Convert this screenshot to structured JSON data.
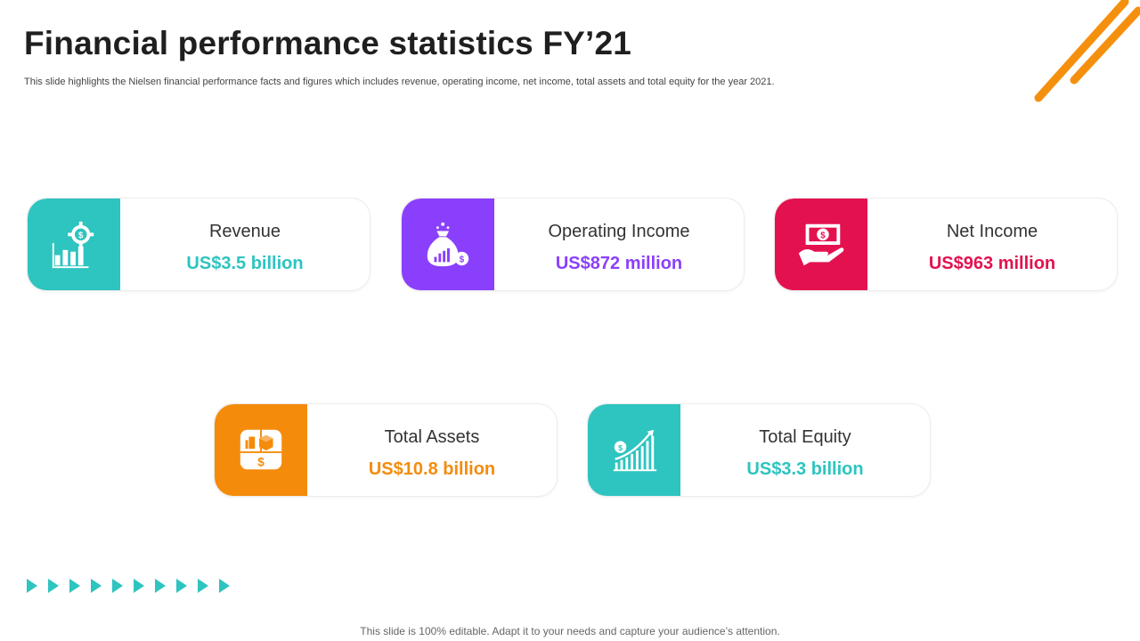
{
  "slide": {
    "title": "Financial performance statistics FY’21",
    "subtitle": "This slide highlights the Nielsen financial performance facts and figures which includes revenue, operating income, net income, total assets and total equity for the year 2021.",
    "footer": "This slide is 100% editable. Adapt it to your needs and capture your audience’s attention."
  },
  "colors": {
    "teal": "#2ec4c0",
    "purple": "#8a3ffc",
    "crimson": "#e3124f",
    "orange": "#f58b0a",
    "deco_orange": "#f5900f"
  },
  "cards": [
    {
      "label": "Revenue",
      "value": "US$3.5 billion",
      "icon": "revenue-chart-gear-icon",
      "color": "#2ec4c0"
    },
    {
      "label": "Operating Income",
      "value": "US$872 million",
      "icon": "money-bag-icon",
      "color": "#8a3ffc"
    },
    {
      "label": "Net Income",
      "value": "US$963 million",
      "icon": "hand-banknote-icon",
      "color": "#e3124f"
    },
    {
      "label": "Total Assets",
      "value": "US$10.8 billion",
      "icon": "assets-icon",
      "color": "#f58b0a"
    },
    {
      "label": "Total Equity",
      "value": "US$3.3 billion",
      "icon": "growth-chart-icon",
      "color": "#2ec4c0"
    }
  ],
  "decor": {
    "arrow_count": 10,
    "arrow_icon": "play-arrow-icon"
  }
}
